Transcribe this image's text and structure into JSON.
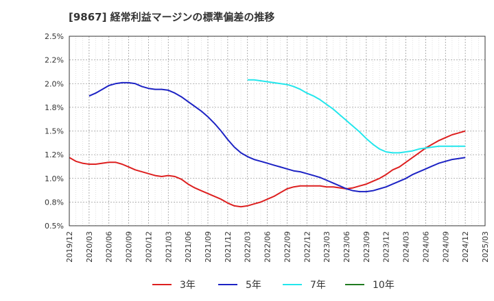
{
  "title": "[9867]  経常利益マージンの標準偏差の推移",
  "chart_data": {
    "type": "line",
    "title": "[9867]  経常利益マージンの標準偏差の推移",
    "xlabel": "",
    "ylabel": "",
    "ylim": [
      0.5,
      2.5
    ],
    "y_ticks": [
      "2.5%",
      "2.2%",
      "2.0%",
      "1.8%",
      "1.5%",
      "1.2%",
      "1.0%",
      "0.8%",
      "0.5%"
    ],
    "x_ticks": [
      "2019/12",
      "2020/03",
      "2020/06",
      "2020/09",
      "2020/12",
      "2021/03",
      "2021/06",
      "2021/09",
      "2021/12",
      "2022/03",
      "2022/06",
      "2022/09",
      "2022/12",
      "2023/03",
      "2023/06",
      "2023/09",
      "2023/12",
      "2024/03",
      "2024/06",
      "2024/09",
      "2024/12",
      "2025/03"
    ],
    "grid": true,
    "legend_position": "bottom",
    "series": [
      {
        "name": "3年",
        "color": "#dd1f1f",
        "points": [
          [
            "2019/12",
            1.22
          ],
          [
            "2020/01",
            1.18
          ],
          [
            "2020/02",
            1.16
          ],
          [
            "2020/03",
            1.15
          ],
          [
            "2020/04",
            1.15
          ],
          [
            "2020/05",
            1.16
          ],
          [
            "2020/06",
            1.17
          ],
          [
            "2020/07",
            1.17
          ],
          [
            "2020/08",
            1.15
          ],
          [
            "2020/09",
            1.12
          ],
          [
            "2020/10",
            1.09
          ],
          [
            "2020/11",
            1.07
          ],
          [
            "2020/12",
            1.05
          ],
          [
            "2021/01",
            1.03
          ],
          [
            "2021/02",
            1.02
          ],
          [
            "2021/03",
            1.03
          ],
          [
            "2021/04",
            1.02
          ],
          [
            "2021/05",
            0.99
          ],
          [
            "2021/06",
            0.94
          ],
          [
            "2021/07",
            0.9
          ],
          [
            "2021/08",
            0.87
          ],
          [
            "2021/09",
            0.84
          ],
          [
            "2021/10",
            0.81
          ],
          [
            "2021/11",
            0.78
          ],
          [
            "2021/12",
            0.74
          ],
          [
            "2022/01",
            0.71
          ],
          [
            "2022/02",
            0.7
          ],
          [
            "2022/03",
            0.71
          ],
          [
            "2022/04",
            0.73
          ],
          [
            "2022/05",
            0.75
          ],
          [
            "2022/06",
            0.78
          ],
          [
            "2022/07",
            0.81
          ],
          [
            "2022/08",
            0.85
          ],
          [
            "2022/09",
            0.89
          ],
          [
            "2022/10",
            0.91
          ],
          [
            "2022/11",
            0.92
          ],
          [
            "2022/12",
            0.92
          ],
          [
            "2023/01",
            0.92
          ],
          [
            "2023/02",
            0.92
          ],
          [
            "2023/03",
            0.91
          ],
          [
            "2023/04",
            0.91
          ],
          [
            "2023/05",
            0.9
          ],
          [
            "2023/06",
            0.89
          ],
          [
            "2023/07",
            0.9
          ],
          [
            "2023/08",
            0.92
          ],
          [
            "2023/09",
            0.94
          ],
          [
            "2023/10",
            0.97
          ],
          [
            "2023/11",
            1.0
          ],
          [
            "2023/12",
            1.04
          ],
          [
            "2024/01",
            1.09
          ],
          [
            "2024/02",
            1.12
          ],
          [
            "2024/03",
            1.17
          ],
          [
            "2024/04",
            1.22
          ],
          [
            "2024/05",
            1.27
          ],
          [
            "2024/06",
            1.32
          ],
          [
            "2024/07",
            1.36
          ],
          [
            "2024/08",
            1.4
          ],
          [
            "2024/09",
            1.43
          ],
          [
            "2024/10",
            1.46
          ],
          [
            "2024/11",
            1.48
          ],
          [
            "2024/12",
            1.5
          ]
        ]
      },
      {
        "name": "5年",
        "color": "#1c22c4",
        "points": [
          [
            "2020/03",
            1.87
          ],
          [
            "2020/04",
            1.9
          ],
          [
            "2020/05",
            1.94
          ],
          [
            "2020/06",
            1.98
          ],
          [
            "2020/07",
            2.0
          ],
          [
            "2020/08",
            2.01
          ],
          [
            "2020/09",
            2.01
          ],
          [
            "2020/10",
            2.0
          ],
          [
            "2020/11",
            1.97
          ],
          [
            "2020/12",
            1.95
          ],
          [
            "2021/01",
            1.94
          ],
          [
            "2021/02",
            1.94
          ],
          [
            "2021/03",
            1.93
          ],
          [
            "2021/04",
            1.9
          ],
          [
            "2021/05",
            1.86
          ],
          [
            "2021/06",
            1.81
          ],
          [
            "2021/07",
            1.76
          ],
          [
            "2021/08",
            1.71
          ],
          [
            "2021/09",
            1.65
          ],
          [
            "2021/10",
            1.58
          ],
          [
            "2021/11",
            1.5
          ],
          [
            "2021/12",
            1.41
          ],
          [
            "2022/01",
            1.33
          ],
          [
            "2022/02",
            1.27
          ],
          [
            "2022/03",
            1.23
          ],
          [
            "2022/04",
            1.2
          ],
          [
            "2022/05",
            1.18
          ],
          [
            "2022/06",
            1.16
          ],
          [
            "2022/07",
            1.14
          ],
          [
            "2022/08",
            1.12
          ],
          [
            "2022/09",
            1.1
          ],
          [
            "2022/10",
            1.08
          ],
          [
            "2022/11",
            1.07
          ],
          [
            "2022/12",
            1.05
          ],
          [
            "2023/01",
            1.03
          ],
          [
            "2023/02",
            1.01
          ],
          [
            "2023/03",
            0.98
          ],
          [
            "2023/04",
            0.95
          ],
          [
            "2023/05",
            0.92
          ],
          [
            "2023/06",
            0.89
          ],
          [
            "2023/07",
            0.87
          ],
          [
            "2023/08",
            0.86
          ],
          [
            "2023/09",
            0.86
          ],
          [
            "2023/10",
            0.87
          ],
          [
            "2023/11",
            0.89
          ],
          [
            "2023/12",
            0.91
          ],
          [
            "2024/01",
            0.94
          ],
          [
            "2024/02",
            0.97
          ],
          [
            "2024/03",
            1.0
          ],
          [
            "2024/04",
            1.04
          ],
          [
            "2024/05",
            1.07
          ],
          [
            "2024/06",
            1.1
          ],
          [
            "2024/07",
            1.13
          ],
          [
            "2024/08",
            1.16
          ],
          [
            "2024/09",
            1.18
          ],
          [
            "2024/10",
            1.2
          ],
          [
            "2024/11",
            1.21
          ],
          [
            "2024/12",
            1.22
          ]
        ]
      },
      {
        "name": "7年",
        "color": "#22e6ec",
        "points": [
          [
            "2022/03",
            2.04
          ],
          [
            "2022/04",
            2.04
          ],
          [
            "2022/05",
            2.03
          ],
          [
            "2022/06",
            2.02
          ],
          [
            "2022/07",
            2.01
          ],
          [
            "2022/08",
            2.0
          ],
          [
            "2022/09",
            1.99
          ],
          [
            "2022/10",
            1.97
          ],
          [
            "2022/11",
            1.94
          ],
          [
            "2022/12",
            1.9
          ],
          [
            "2023/01",
            1.87
          ],
          [
            "2023/02",
            1.83
          ],
          [
            "2023/03",
            1.78
          ],
          [
            "2023/04",
            1.73
          ],
          [
            "2023/05",
            1.67
          ],
          [
            "2023/06",
            1.61
          ],
          [
            "2023/07",
            1.55
          ],
          [
            "2023/08",
            1.49
          ],
          [
            "2023/09",
            1.42
          ],
          [
            "2023/10",
            1.36
          ],
          [
            "2023/11",
            1.31
          ],
          [
            "2023/12",
            1.28
          ],
          [
            "2024/01",
            1.27
          ],
          [
            "2024/02",
            1.27
          ],
          [
            "2024/03",
            1.28
          ],
          [
            "2024/04",
            1.29
          ],
          [
            "2024/05",
            1.31
          ],
          [
            "2024/06",
            1.32
          ],
          [
            "2024/07",
            1.33
          ],
          [
            "2024/08",
            1.34
          ],
          [
            "2024/09",
            1.34
          ],
          [
            "2024/10",
            1.34
          ],
          [
            "2024/11",
            1.34
          ],
          [
            "2024/12",
            1.34
          ]
        ]
      },
      {
        "name": "10年",
        "color": "#1f7a1f",
        "points": []
      }
    ]
  }
}
